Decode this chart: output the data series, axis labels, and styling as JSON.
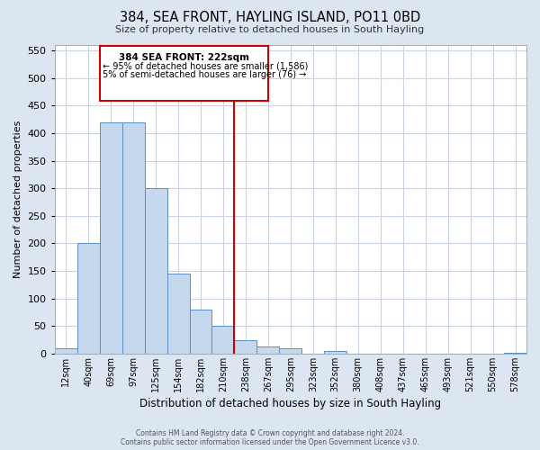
{
  "title": "384, SEA FRONT, HAYLING ISLAND, PO11 0BD",
  "subtitle": "Size of property relative to detached houses in South Hayling",
  "xlabel": "Distribution of detached houses by size in South Hayling",
  "ylabel": "Number of detached properties",
  "bar_color": "#c5d8ee",
  "bar_edge_color": "#5b8ec4",
  "background_color": "#dce6f1",
  "plot_bg_color": "#ffffff",
  "grid_color": "#c8d4e4",
  "annotation_box_edge": "#cc0000",
  "vline_color": "#cc0000",
  "tick_labels": [
    "12sqm",
    "40sqm",
    "69sqm",
    "97sqm",
    "125sqm",
    "154sqm",
    "182sqm",
    "210sqm",
    "238sqm",
    "267sqm",
    "295sqm",
    "323sqm",
    "352sqm",
    "380sqm",
    "408sqm",
    "437sqm",
    "465sqm",
    "493sqm",
    "521sqm",
    "550sqm",
    "578sqm"
  ],
  "bar_heights": [
    10,
    200,
    420,
    420,
    300,
    145,
    80,
    50,
    25,
    13,
    10,
    0,
    5,
    0,
    0,
    0,
    0,
    0,
    0,
    0,
    2
  ],
  "annotation_title": "384 SEA FRONT: 222sqm",
  "annotation_line1": "← 95% of detached houses are smaller (1,586)",
  "annotation_line2": "5% of semi-detached houses are larger (76) →",
  "ylim": [
    0,
    560
  ],
  "yticks": [
    0,
    50,
    100,
    150,
    200,
    250,
    300,
    350,
    400,
    450,
    500,
    550
  ],
  "footer1": "Contains HM Land Registry data © Crown copyright and database right 2024.",
  "footer2": "Contains public sector information licensed under the Open Government Licence v3.0."
}
